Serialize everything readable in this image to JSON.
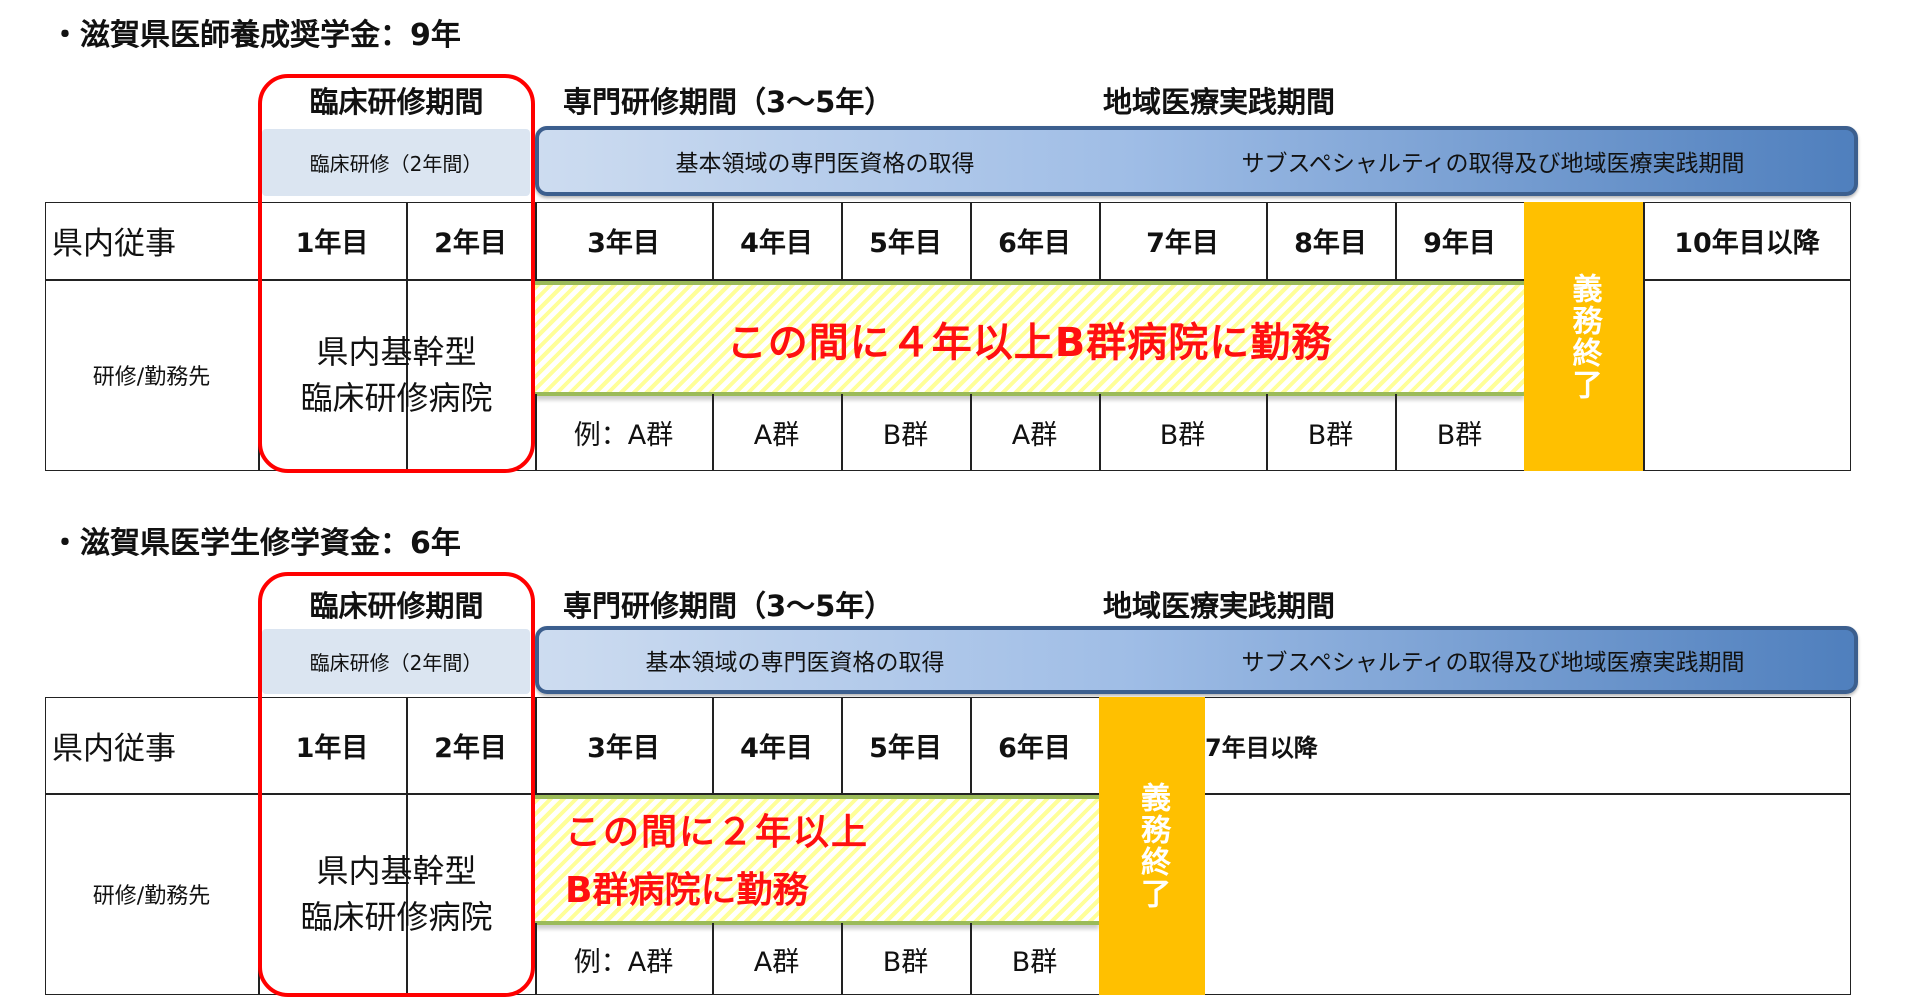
{
  "sections": [
    {
      "title": "・滋賀県医師養成奨学金：9年",
      "headers": {
        "clinical": "臨床研修期間",
        "specialty": "専門研修期間（3～5年）",
        "regional": "地域医療実践期間"
      },
      "clinical_box": "臨床研修（2年間）",
      "bar": {
        "left": "基本領域の専門医資格の取得",
        "right": "サブスペシャルティの取得及び地域医療実践期間"
      },
      "row1_label": "県内従事",
      "years": [
        "1年目",
        "2年目",
        "3年目",
        "4年目",
        "5年目",
        "6年目",
        "7年目",
        "8年目",
        "9年目"
      ],
      "after": "10年目以降",
      "row2_label": "研修/勤務先",
      "hospital": "県内基幹型\n臨床研修病院",
      "stripe_text": "この間に４年以上B群病院に勤務",
      "groups": [
        "例：A群",
        "A群",
        "B群",
        "A群",
        "B群",
        "B群",
        "B群"
      ],
      "end_label": "義務終了"
    },
    {
      "title": "・滋賀県医学生修学資金：6年",
      "headers": {
        "clinical": "臨床研修期間",
        "specialty": "専門研修期間（3～5年）",
        "regional": "地域医療実践期間"
      },
      "clinical_box": "臨床研修（2年間）",
      "bar": {
        "left": "基本領域の専門医資格の取得",
        "right": "サブスペシャルティの取得及び地域医療実践期間"
      },
      "row1_label": "県内従事",
      "years": [
        "1年目",
        "2年目",
        "3年目",
        "4年目",
        "5年目",
        "6年目"
      ],
      "after": "7年目以降",
      "row2_label": "研修/勤務先",
      "hospital": "県内基幹型\n臨床研修病院",
      "stripe_text_lines": [
        "この間に２年以上",
        "B群病院に勤務"
      ],
      "groups": [
        "例：A群",
        "A群",
        "B群",
        "B群"
      ],
      "end_label": "義務終了"
    }
  ],
  "colors": {
    "highlight_border": "#ff0000",
    "end_column": "#ffc000",
    "bar_border": "#3c5f8e",
    "stripe_text": "#ff1010"
  }
}
